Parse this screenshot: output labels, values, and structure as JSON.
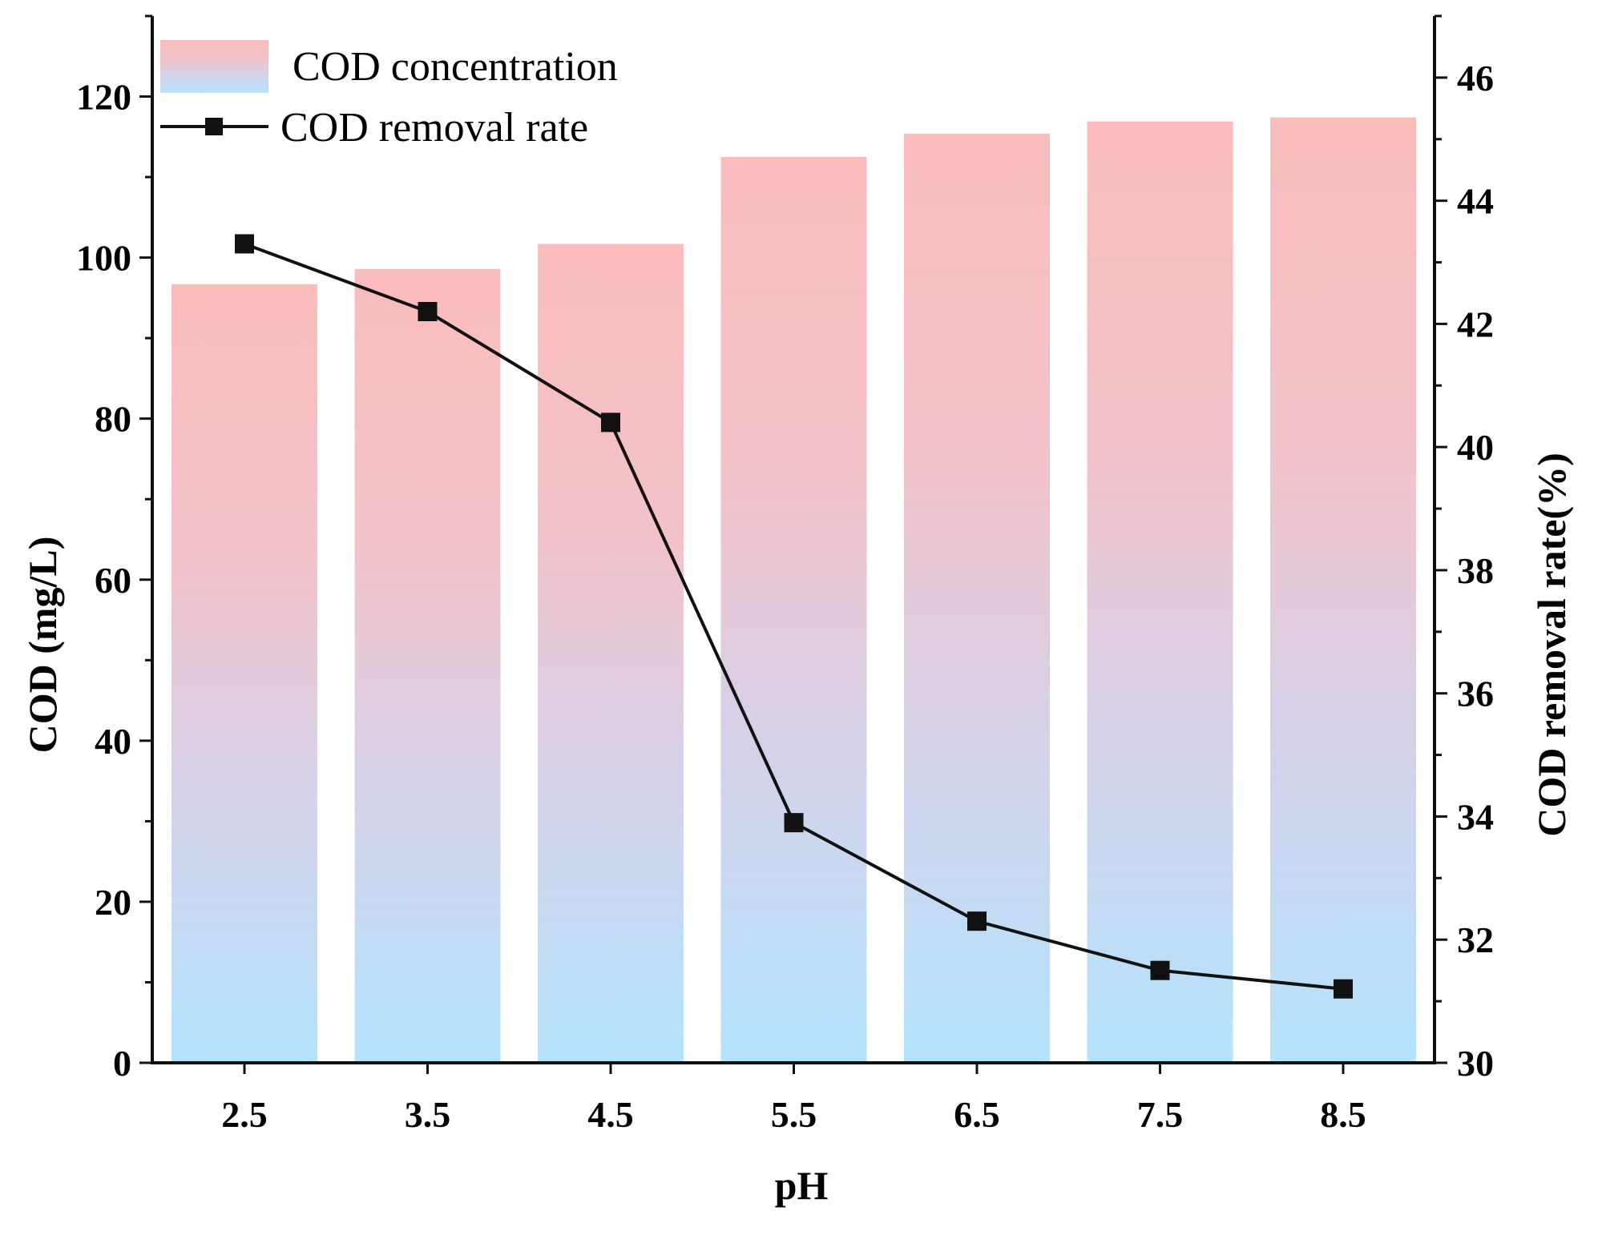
{
  "chart_data": {
    "type": "bar",
    "categories": [
      "2.5",
      "3.5",
      "4.5",
      "5.5",
      "6.5",
      "7.5",
      "8.5"
    ],
    "series": [
      {
        "name": "COD concentration",
        "type": "bar",
        "axis": "left",
        "values": [
          96.7,
          98.6,
          101.7,
          112.5,
          115.4,
          116.9,
          117.4
        ]
      },
      {
        "name": "COD removal rate",
        "type": "line",
        "axis": "right",
        "marker": "square",
        "values": [
          43.3,
          42.2,
          40.4,
          33.9,
          32.3,
          31.5,
          31.2
        ]
      }
    ],
    "xlabel": "pH",
    "ylabel": "COD (mg/L)",
    "y2label": "COD removal rate(%)",
    "ylim": [
      0,
      130
    ],
    "y2lim": [
      30,
      47
    ],
    "yticks": [
      "0",
      "20",
      "40",
      "60",
      "80",
      "100",
      "120"
    ],
    "y2ticks": [
      "30",
      "32",
      "34",
      "36",
      "38",
      "40",
      "42",
      "44",
      "46"
    ],
    "legend": "top-left",
    "grid": false,
    "colors": {
      "bar_top": "#fbbcbc",
      "bar_bottom": "#b4e3fd",
      "line": "#111111",
      "axis": "#111111"
    }
  }
}
